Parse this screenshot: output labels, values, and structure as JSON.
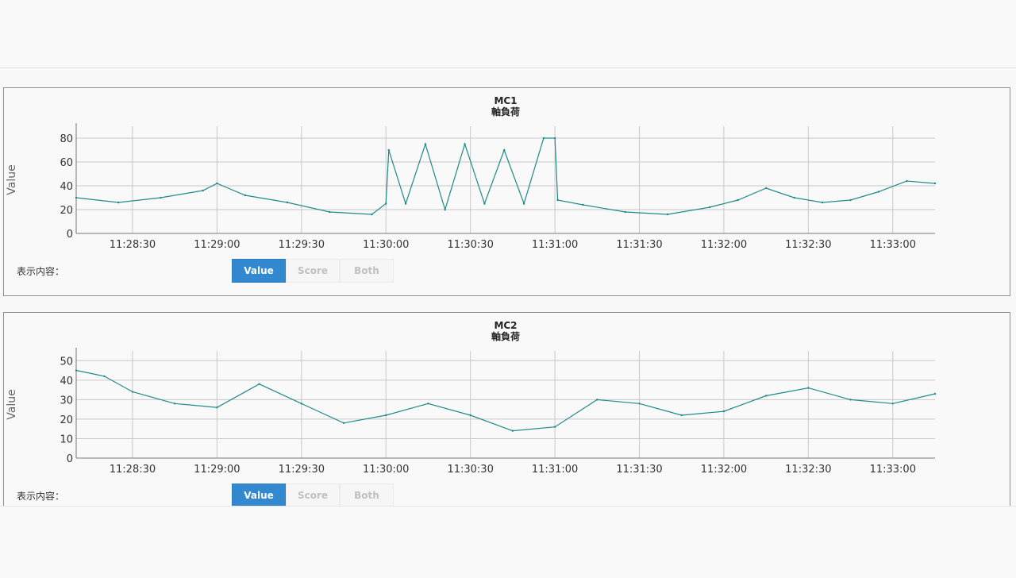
{
  "colors": {
    "line": "#1f8a8a",
    "grid": "#c8c8c8",
    "button_active": "#3389d0"
  },
  "display_label": "表示内容：",
  "buttons": [
    "Value",
    "Score",
    "Both"
  ],
  "chart_data": [
    {
      "type": "line",
      "title": "MC1",
      "subtitle": "軸負荷",
      "ylabel": "Value",
      "xlabel": "",
      "ylim": [
        0,
        90
      ],
      "yticks": [
        0,
        20,
        40,
        60,
        80
      ],
      "xlim": [
        "11:28:10",
        "11:33:15"
      ],
      "xticks": [
        "11:28:30",
        "11:29:00",
        "11:29:30",
        "11:30:00",
        "11:30:30",
        "11:31:00",
        "11:31:30",
        "11:32:00",
        "11:32:30",
        "11:33:00"
      ],
      "grid": true,
      "legend": "none",
      "active_button": "Value",
      "series": [
        {
          "x": [
            "11:28:10",
            "11:28:25",
            "11:28:40",
            "11:28:55",
            "11:29:00",
            "11:29:10",
            "11:29:25",
            "11:29:40",
            "11:29:55",
            "11:30:00",
            "11:30:01",
            "11:30:07",
            "11:30:14",
            "11:30:21",
            "11:30:28",
            "11:30:35",
            "11:30:42",
            "11:30:49",
            "11:30:56",
            "11:31:00",
            "11:31:01",
            "11:31:10",
            "11:31:25",
            "11:31:40",
            "11:31:55",
            "11:32:05",
            "11:32:15",
            "11:32:25",
            "11:32:35",
            "11:32:45",
            "11:32:55",
            "11:33:05",
            "11:33:15"
          ],
          "y": [
            30,
            26,
            30,
            36,
            42,
            32,
            26,
            18,
            16,
            25,
            70,
            25,
            75,
            20,
            75,
            25,
            70,
            25,
            80,
            80,
            28,
            24,
            18,
            16,
            22,
            28,
            38,
            30,
            26,
            28,
            35,
            44,
            42
          ]
        }
      ]
    },
    {
      "type": "line",
      "title": "MC2",
      "subtitle": "軸負荷",
      "ylabel": "Value",
      "xlabel": "",
      "ylim": [
        0,
        55
      ],
      "yticks": [
        0,
        10,
        20,
        30,
        40,
        50
      ],
      "xlim": [
        "11:28:10",
        "11:33:15"
      ],
      "xticks": [
        "11:28:30",
        "11:29:00",
        "11:29:30",
        "11:30:00",
        "11:30:30",
        "11:31:00",
        "11:31:30",
        "11:32:00",
        "11:32:30",
        "11:33:00"
      ],
      "grid": true,
      "legend": "none",
      "active_button": "Value",
      "series": [
        {
          "x": [
            "11:28:10",
            "11:28:20",
            "11:28:30",
            "11:28:45",
            "11:29:00",
            "11:29:15",
            "11:29:30",
            "11:29:45",
            "11:30:00",
            "11:30:15",
            "11:30:30",
            "11:30:45",
            "11:31:00",
            "11:31:15",
            "11:31:30",
            "11:31:45",
            "11:32:00",
            "11:32:15",
            "11:32:30",
            "11:32:45",
            "11:33:00",
            "11:33:15"
          ],
          "y": [
            45,
            42,
            34,
            28,
            26,
            38,
            28,
            18,
            22,
            28,
            22,
            14,
            16,
            30,
            28,
            22,
            24,
            32,
            36,
            30,
            28,
            33
          ]
        }
      ]
    }
  ]
}
